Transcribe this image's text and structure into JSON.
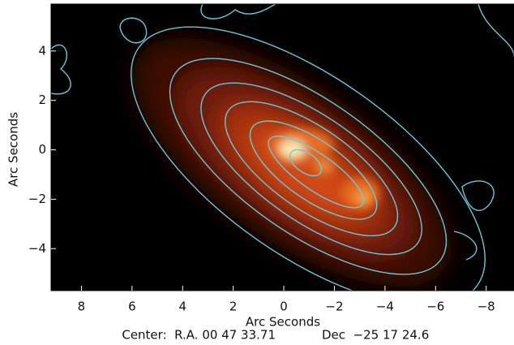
{
  "chart_data": {
    "type": "image",
    "x_label": "Arc Seconds",
    "y_label": "Arc Seconds",
    "center_ra": "Center:  R.A. 00 47 33.71",
    "center_dec": "Dec  −25 17 24.6",
    "xlim": [
      9.2,
      -9.1
    ],
    "ylim": [
      -5.7,
      5.9
    ],
    "xticks": [
      8,
      6,
      4,
      2,
      0,
      {
        "value": -2,
        "label": "−2"
      },
      {
        "value": -4,
        "label": "−4"
      },
      {
        "value": -6,
        "label": "−6"
      },
      {
        "value": -8,
        "label": "−8"
      }
    ],
    "yticks": [
      {
        "value": -4,
        "label": "−4"
      },
      {
        "value": -2,
        "label": "−2"
      },
      0,
      2,
      4
    ],
    "contour_color": "#6cc8d6"
  }
}
